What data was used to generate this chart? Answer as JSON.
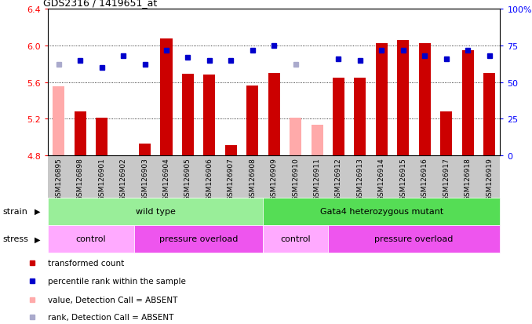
{
  "title": "GDS2316 / 1419651_at",
  "samples": [
    "GSM126895",
    "GSM126898",
    "GSM126901",
    "GSM126902",
    "GSM126903",
    "GSM126904",
    "GSM126905",
    "GSM126906",
    "GSM126907",
    "GSM126908",
    "GSM126909",
    "GSM126910",
    "GSM126911",
    "GSM126912",
    "GSM126913",
    "GSM126914",
    "GSM126915",
    "GSM126916",
    "GSM126917",
    "GSM126918",
    "GSM126919"
  ],
  "bar_values": [
    null,
    5.28,
    5.21,
    null,
    4.93,
    6.08,
    5.69,
    5.68,
    4.91,
    5.56,
    5.7,
    null,
    null,
    5.65,
    5.65,
    6.03,
    6.06,
    6.03,
    5.28,
    5.95,
    5.7
  ],
  "bar_absent_values": [
    5.55,
    null,
    null,
    null,
    null,
    null,
    null,
    null,
    null,
    null,
    null,
    5.21,
    5.13,
    null,
    null,
    null,
    null,
    null,
    null,
    null,
    null
  ],
  "rank_values": [
    null,
    65,
    60,
    68,
    62,
    72,
    67,
    65,
    65,
    72,
    75,
    null,
    null,
    66,
    65,
    72,
    72,
    68,
    66,
    72,
    68
  ],
  "rank_absent_values": [
    62,
    null,
    null,
    null,
    null,
    null,
    null,
    null,
    null,
    null,
    null,
    62,
    null,
    null,
    null,
    null,
    null,
    null,
    null,
    null,
    null
  ],
  "ylim": [
    4.8,
    6.4
  ],
  "y2lim": [
    0,
    100
  ],
  "yticks": [
    4.8,
    5.2,
    5.6,
    6.0,
    6.4
  ],
  "y2ticks": [
    0,
    25,
    50,
    75,
    100
  ],
  "y2tick_labels": [
    "0",
    "25",
    "50",
    "75",
    "100%"
  ],
  "bar_color": "#cc0000",
  "bar_absent_color": "#ffaaaa",
  "rank_color": "#0000cc",
  "rank_absent_color": "#aaaacc",
  "bg_color": "#c8c8c8",
  "strain_groups": [
    {
      "label": "wild type",
      "start": 0,
      "end": 10,
      "color": "#99ee99"
    },
    {
      "label": "Gata4 heterozygous mutant",
      "start": 10,
      "end": 21,
      "color": "#55dd55"
    }
  ],
  "stress_groups": [
    {
      "label": "control",
      "start": 0,
      "end": 4,
      "color": "#ffaaff"
    },
    {
      "label": "pressure overload",
      "start": 4,
      "end": 10,
      "color": "#ee55ee"
    },
    {
      "label": "control",
      "start": 10,
      "end": 13,
      "color": "#ffaaff"
    },
    {
      "label": "pressure overload",
      "start": 13,
      "end": 21,
      "color": "#ee55ee"
    }
  ],
  "legend_items": [
    {
      "label": "transformed count",
      "color": "#cc0000",
      "marker": "s"
    },
    {
      "label": "percentile rank within the sample",
      "color": "#0000cc",
      "marker": "s"
    },
    {
      "label": "value, Detection Call = ABSENT",
      "color": "#ffaaaa",
      "marker": "s"
    },
    {
      "label": "rank, Detection Call = ABSENT",
      "color": "#aaaacc",
      "marker": "s"
    }
  ]
}
